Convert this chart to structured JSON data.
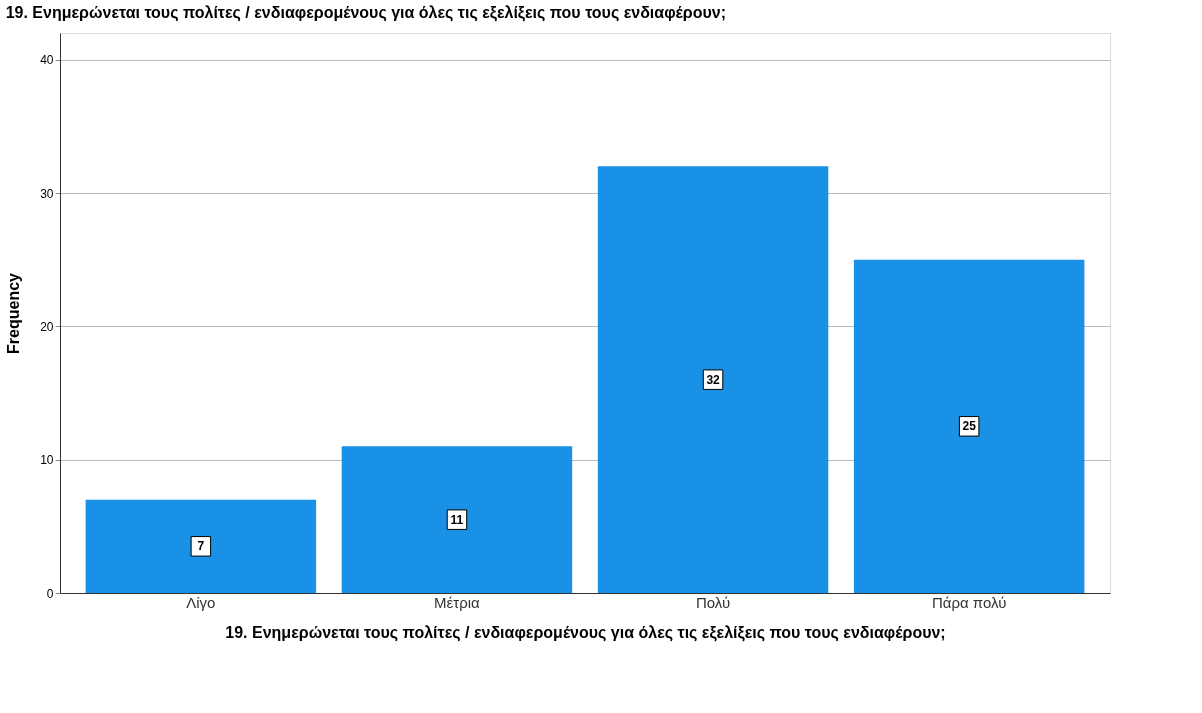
{
  "chart_data": {
    "type": "bar",
    "title": "19. Ενημερώνεται τους πολίτες / ενδιαφερομένους για όλες τις εξελίξεις που τους ενδιαφέρουν;",
    "xlabel": "19. Ενημερώνεται τους πολίτες / ενδιαφερομένους για όλες τις εξελίξεις που τους ενδιαφέρουν;",
    "ylabel": "Frequency",
    "categories": [
      "Λίγο",
      "Μέτρια",
      "Πολύ",
      "Πάρα πολύ"
    ],
    "values": [
      7,
      11,
      32,
      25
    ],
    "color": "#1991e6",
    "ylim": [
      0,
      42
    ],
    "yticks": [
      0,
      10,
      20,
      30,
      40
    ],
    "grid": "y",
    "data_labels": true
  }
}
